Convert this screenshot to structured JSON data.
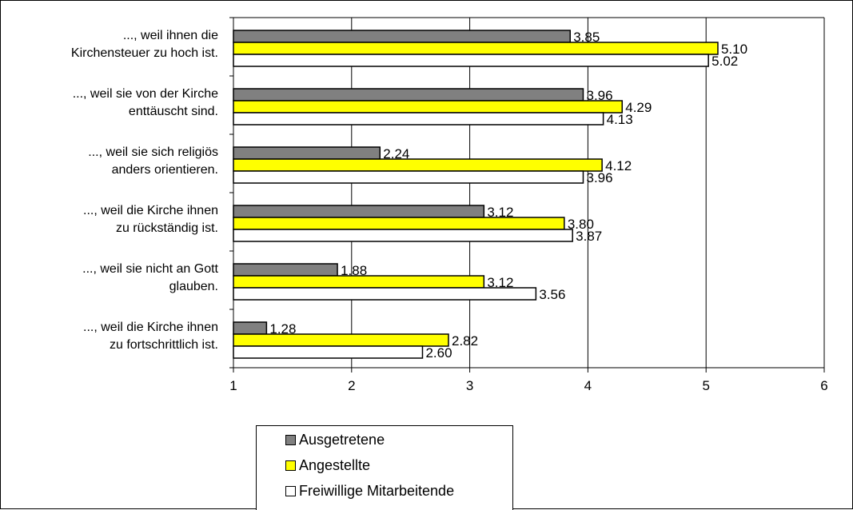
{
  "chart_data": {
    "type": "bar",
    "orientation": "horizontal",
    "categories": [
      "..., weil ihnen die Kirchensteuer zu hoch ist.",
      "..., weil sie von der Kirche enttäuscht sind.",
      "..., weil sie sich religiös anders orientieren.",
      "..., weil die Kirche ihnen zu rückständig ist.",
      "..., weil sie nicht an Gott glauben.",
      "..., weil die Kirche ihnen zu fortschrittlich ist."
    ],
    "category_lines": [
      [
        "..., weil ihnen die",
        "Kirchensteuer zu hoch ist."
      ],
      [
        "..., weil sie von der Kirche",
        "enttäuscht sind."
      ],
      [
        "..., weil sie sich religiös",
        "anders orientieren."
      ],
      [
        "..., weil die Kirche ihnen",
        "zu rückständig ist."
      ],
      [
        "..., weil sie nicht an Gott",
        "glauben."
      ],
      [
        "..., weil die Kirche ihnen",
        "zu fortschrittlich ist."
      ]
    ],
    "series": [
      {
        "name": "Ausgetretene",
        "color": "#808080",
        "values": [
          3.85,
          3.96,
          2.24,
          3.12,
          1.88,
          1.28
        ],
        "labels": [
          "3.85",
          "3.96",
          "2.24",
          "3.12",
          "1.88",
          "1.28"
        ]
      },
      {
        "name": "Angestellte",
        "color": "#ffff00",
        "values": [
          5.1,
          4.29,
          4.12,
          3.8,
          3.12,
          2.82
        ],
        "labels": [
          "5.10",
          "4.29",
          "4.12",
          "3.80",
          "3.12",
          "2.82"
        ]
      },
      {
        "name": "Freiwillige Mitarbeitende",
        "color": "#ffffff",
        "values": [
          5.02,
          4.13,
          3.96,
          3.87,
          3.56,
          2.6
        ],
        "labels": [
          "5.02",
          "4.13",
          "3.96",
          "3.87",
          "3.56",
          "2.60"
        ]
      }
    ],
    "xlim": [
      1,
      6
    ],
    "xticks": [
      "1",
      "2",
      "3",
      "4",
      "5",
      "6"
    ],
    "grid": true,
    "legend_position": "bottom"
  }
}
